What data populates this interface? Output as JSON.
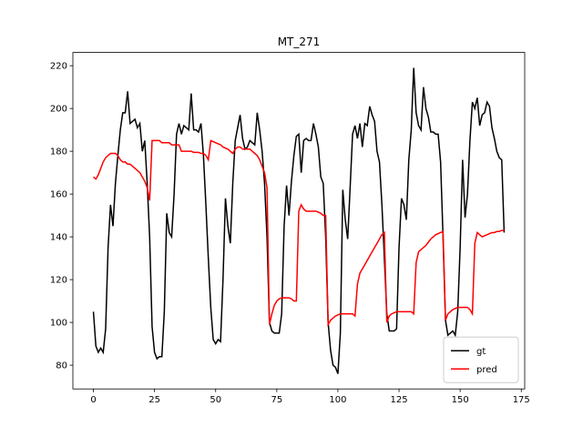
{
  "chart_data": {
    "type": "line",
    "title": "MT_271",
    "x": [
      0,
      1,
      2,
      3,
      4,
      5,
      6,
      7,
      8,
      9,
      10,
      11,
      12,
      13,
      14,
      15,
      16,
      17,
      18,
      19,
      20,
      21,
      22,
      23,
      24,
      25,
      26,
      27,
      28,
      29,
      30,
      31,
      32,
      33,
      34,
      35,
      36,
      37,
      38,
      39,
      40,
      41,
      42,
      43,
      44,
      45,
      46,
      47,
      48,
      49,
      50,
      51,
      52,
      53,
      54,
      55,
      56,
      57,
      58,
      59,
      60,
      61,
      62,
      63,
      64,
      65,
      66,
      67,
      68,
      69,
      70,
      71,
      72,
      73,
      74,
      75,
      76,
      77,
      78,
      79,
      80,
      81,
      82,
      83,
      84,
      85,
      86,
      87,
      88,
      89,
      90,
      91,
      92,
      93,
      94,
      95,
      96,
      97,
      98,
      99,
      100,
      101,
      102,
      103,
      104,
      105,
      106,
      107,
      108,
      109,
      110,
      111,
      112,
      113,
      114,
      115,
      116,
      117,
      118,
      119,
      120,
      121,
      122,
      123,
      124,
      125,
      126,
      127,
      128,
      129,
      130,
      131,
      132,
      133,
      134,
      135,
      136,
      137,
      138,
      139,
      140,
      141,
      142,
      143,
      144,
      145,
      146,
      147,
      148,
      149,
      150,
      151,
      152,
      153,
      154,
      155,
      156,
      157,
      158,
      159,
      160,
      161,
      162,
      163,
      164,
      165,
      166,
      167,
      168
    ],
    "series": [
      {
        "name": "gt",
        "color": "#000000",
        "values": [
          105,
          89,
          86,
          88,
          86,
          97,
          135,
          155,
          145,
          165,
          178,
          190,
          198,
          198,
          208,
          193,
          194,
          195,
          191,
          193,
          180,
          185,
          165,
          140,
          98,
          86,
          83,
          84,
          84,
          105,
          151,
          142,
          140,
          160,
          188,
          193,
          188,
          192,
          191,
          190,
          207,
          190,
          190,
          189,
          193,
          178,
          155,
          130,
          107,
          92,
          90,
          92,
          91,
          120,
          158,
          145,
          137,
          165,
          185,
          191,
          197,
          186,
          181,
          182,
          185,
          184,
          183,
          198,
          190,
          180,
          165,
          140,
          100,
          96,
          95,
          95,
          95,
          104,
          145,
          164,
          150,
          166,
          178,
          187,
          188,
          170,
          185,
          186,
          185,
          185,
          193,
          188,
          182,
          168,
          165,
          140,
          100,
          87,
          80,
          79,
          76,
          95,
          162,
          148,
          139,
          163,
          188,
          192,
          186,
          193,
          182,
          193,
          192,
          201,
          197,
          194,
          180,
          175,
          155,
          130,
          104,
          96,
          96,
          96,
          97,
          135,
          158,
          155,
          148,
          176,
          190,
          219,
          198,
          192,
          190,
          210,
          200,
          196,
          189,
          189,
          188,
          188,
          175,
          140,
          101,
          94,
          95,
          96,
          94,
          105,
          135,
          176,
          149,
          160,
          185,
          203,
          200,
          205,
          192,
          197,
          198,
          203,
          201,
          191,
          186,
          180,
          177,
          176,
          142
        ]
      },
      {
        "name": "pred",
        "color": "#ff0000",
        "values": [
          168,
          167,
          169,
          172,
          175,
          177,
          178,
          179,
          179,
          179,
          178,
          176,
          175,
          175,
          174,
          174,
          173,
          172,
          171,
          170,
          168,
          166,
          163,
          157,
          185,
          185,
          185,
          185,
          184,
          184,
          184,
          184,
          183,
          183,
          183,
          183,
          180,
          180,
          180,
          180,
          180,
          179.5,
          179.5,
          179.5,
          179,
          179,
          178,
          176,
          185,
          184.5,
          184,
          183.5,
          183,
          182,
          181.5,
          181,
          180,
          179,
          181,
          182,
          182,
          181,
          181,
          181,
          181,
          180,
          179,
          178,
          176,
          173,
          170,
          163,
          99,
          104,
          108,
          110,
          111,
          111.5,
          111.5,
          111.5,
          111.5,
          111,
          110,
          110,
          152,
          155,
          153,
          152,
          152,
          152,
          152,
          152,
          151.5,
          151,
          150,
          150,
          99,
          101,
          102,
          103,
          103.5,
          104,
          104,
          104,
          104,
          104,
          104,
          103,
          118,
          123,
          125,
          127,
          129,
          131,
          133,
          135,
          137,
          139,
          141,
          142,
          100,
          103,
          104,
          104.5,
          105,
          105,
          105,
          105,
          105,
          105,
          105,
          104,
          128,
          133,
          134,
          135,
          136,
          137.5,
          139,
          140,
          141,
          141.5,
          142,
          142.5,
          101,
          104,
          105,
          106,
          106.5,
          107,
          107,
          107,
          107,
          107,
          106,
          104,
          137,
          142,
          141,
          140,
          140.5,
          141,
          141.5,
          142,
          142,
          142.5,
          142.5,
          143,
          143
        ]
      }
    ],
    "xlim": [
      -8.4,
      176.4
    ],
    "ylim": [
      68.9,
      226.2
    ],
    "xticks": [
      0,
      25,
      50,
      75,
      100,
      125,
      150,
      175
    ],
    "yticks": [
      80,
      100,
      120,
      140,
      160,
      180,
      200,
      220
    ],
    "legend": "lower right",
    "grid": false
  }
}
